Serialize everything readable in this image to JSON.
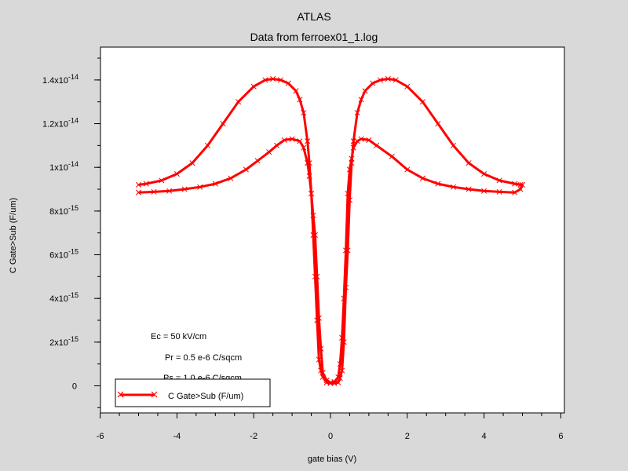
{
  "window": {
    "title": "ATLAS",
    "subtitle": "Data from ferroex01_1.log"
  },
  "annotations": [
    "Ec = 50 kV/cm",
    "Pr = 0.5 e-6 C/sqcm",
    "Ps = 1.0 e-6 C/sqcm"
  ],
  "colors": {
    "series": "#ff0000",
    "background": "#d9d9d9",
    "plot": "#ffffff"
  },
  "chart_data": {
    "type": "line",
    "title": "ATLAS",
    "subtitle": "Data from ferroex01_1.log",
    "xlabel": "gate bias (V)",
    "ylabel": "C Gate>Sub (F/um)",
    "xlim": [
      -6,
      6
    ],
    "ylim": [
      -1.2e-15,
      1.55e-14
    ],
    "grid": false,
    "legend_position": "bottom-left",
    "x_ticks": [
      {
        "value": -6,
        "label": "-6"
      },
      {
        "value": -4,
        "label": "-4"
      },
      {
        "value": -2,
        "label": "-2"
      },
      {
        "value": 0,
        "label": "0"
      },
      {
        "value": 2,
        "label": "2"
      },
      {
        "value": 4,
        "label": "4"
      },
      {
        "value": 6,
        "label": "6"
      }
    ],
    "y_ticks": [
      {
        "value": 0,
        "mant": "0",
        "exp": ""
      },
      {
        "value": 2e-15,
        "mant": "2x10",
        "exp": "-15"
      },
      {
        "value": 4e-15,
        "mant": "4x10",
        "exp": "-15"
      },
      {
        "value": 6e-15,
        "mant": "6x10",
        "exp": "-15"
      },
      {
        "value": 8e-15,
        "mant": "8x10",
        "exp": "-15"
      },
      {
        "value": 1e-14,
        "mant": "1x10",
        "exp": "-14"
      },
      {
        "value": 1.2e-14,
        "mant": "1.2x10",
        "exp": "-14"
      },
      {
        "value": 1.4e-14,
        "mant": "1.4x10",
        "exp": "-14"
      }
    ],
    "series": [
      {
        "name": "C Gate>Sub (F/um)",
        "marker": "x",
        "x": [
          -5.0,
          -4.6,
          -4.2,
          -3.8,
          -3.4,
          -3.0,
          -2.6,
          -2.2,
          -1.9,
          -1.6,
          -1.4,
          -1.2,
          -1.0,
          -0.8,
          -0.7,
          -0.6,
          -0.55,
          -0.5,
          -0.45,
          -0.4,
          -0.35,
          -0.3,
          -0.25,
          -0.2,
          -0.1,
          0.0,
          0.1,
          0.2,
          0.25,
          0.3,
          0.35,
          0.4,
          0.45,
          0.5,
          0.55,
          0.6,
          0.7,
          0.8,
          0.9,
          1.1,
          1.3,
          1.5,
          1.7,
          2.0,
          2.4,
          2.8,
          3.2,
          3.6,
          4.0,
          4.4,
          4.8,
          4.95,
          5.0,
          4.95,
          4.8,
          4.4,
          4.0,
          3.6,
          3.2,
          2.8,
          2.4,
          2.0,
          1.6,
          1.2,
          1.0,
          0.8,
          0.7,
          0.6,
          0.55,
          0.5,
          0.45,
          0.4,
          0.35,
          0.3,
          0.25,
          0.2,
          0.1,
          0.0,
          -0.1,
          -0.2,
          -0.25,
          -0.3,
          -0.35,
          -0.4,
          -0.45,
          -0.5,
          -0.55,
          -0.6,
          -0.7,
          -0.8,
          -0.9,
          -1.1,
          -1.3,
          -1.5,
          -1.7,
          -2.0,
          -2.4,
          -2.8,
          -3.2,
          -3.6,
          -4.0,
          -4.4,
          -4.8,
          -5.0
        ],
        "y": [
          8.85e-15,
          8.88e-15,
          8.92e-15,
          9e-15,
          9.1e-15,
          9.25e-15,
          9.5e-15,
          9.9e-15,
          1.03e-14,
          1.07e-14,
          1.1e-14,
          1.125e-14,
          1.13e-14,
          1.12e-14,
          1.09e-14,
          1.02e-14,
          9.6e-15,
          8.8e-15,
          7.8e-15,
          6.9e-15,
          5e-15,
          3.1e-15,
          1.7e-15,
          6e-16,
          2.5e-16,
          1.5e-16,
          1.2e-16,
          1.5e-16,
          3.5e-16,
          7e-16,
          2e-15,
          4.5e-15,
          6.2e-15,
          8.5e-15,
          1.02e-14,
          1.12e-14,
          1.25e-14,
          1.31e-14,
          1.35e-14,
          1.385e-14,
          1.4e-14,
          1.405e-14,
          1.4e-14,
          1.37e-14,
          1.3e-14,
          1.2e-14,
          1.1e-14,
          1.02e-14,
          9.7e-15,
          9.4e-15,
          9.25e-15,
          9.2e-15,
          9.2e-15,
          9e-15,
          8.85e-15,
          8.88e-15,
          8.92e-15,
          9e-15,
          9.1e-15,
          9.25e-15,
          9.5e-15,
          9.9e-15,
          1.05e-14,
          1.1e-14,
          1.125e-14,
          1.13e-14,
          1.12e-14,
          1.09e-14,
          1.04e-14,
          9.9e-15,
          8.8e-15,
          6.2e-15,
          4e-15,
          2.2e-15,
          1e-15,
          4e-16,
          1.8e-16,
          1.2e-16,
          1.5e-16,
          4e-16,
          7e-16,
          1.2e-15,
          3e-15,
          5e-15,
          6.9e-15,
          8.8e-15,
          1.02e-14,
          1.12e-14,
          1.25e-14,
          1.31e-14,
          1.35e-14,
          1.385e-14,
          1.4e-14,
          1.405e-14,
          1.4e-14,
          1.37e-14,
          1.3e-14,
          1.2e-14,
          1.1e-14,
          1.02e-14,
          9.7e-15,
          9.4e-15,
          9.25e-15,
          9.2e-15
        ]
      }
    ]
  }
}
